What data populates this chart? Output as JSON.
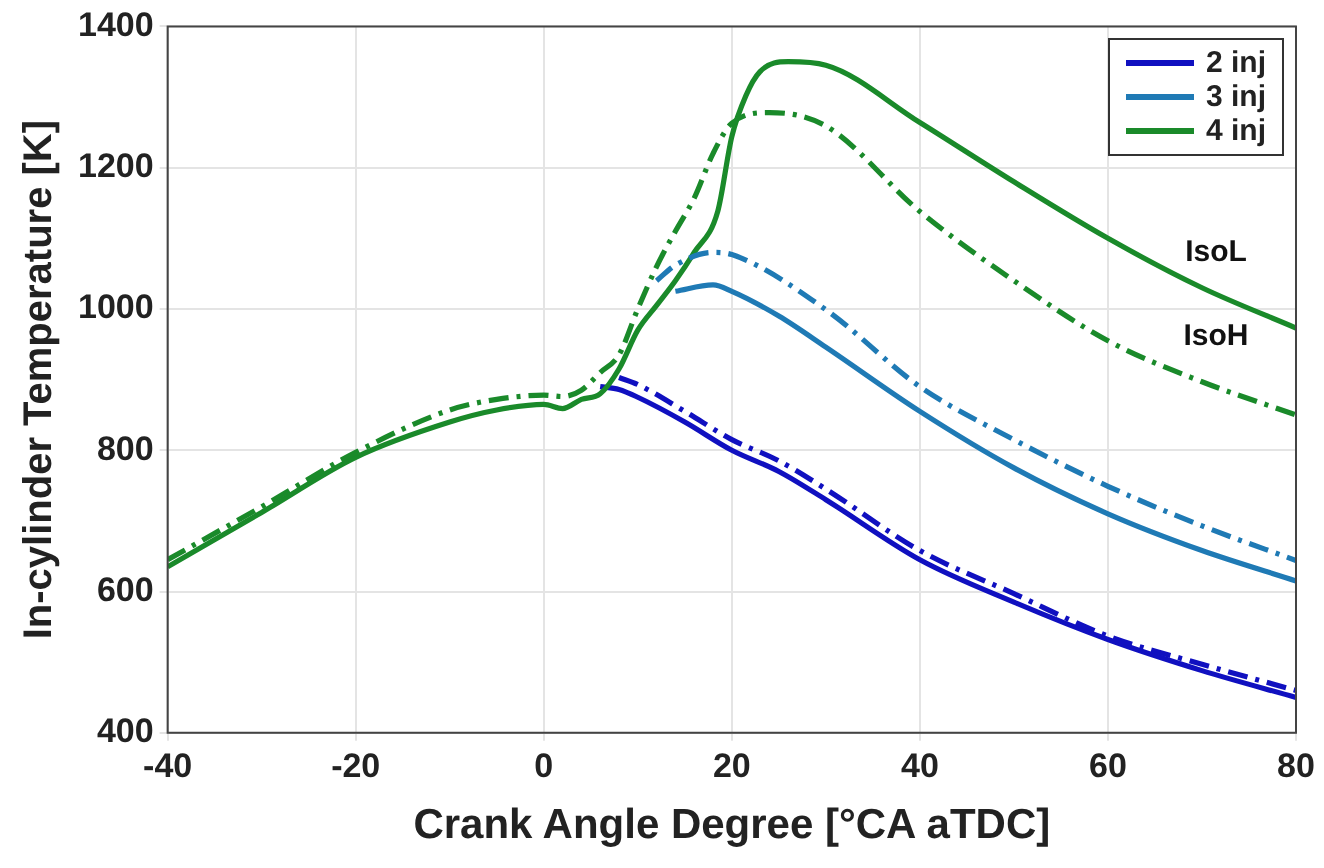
{
  "chart_data": {
    "type": "line",
    "xlabel": "Crank Angle Degree [°CA aTDC]",
    "ylabel": "In-cylinder Temperature [K]",
    "xlim": [
      -40,
      80
    ],
    "xticks": [
      -40,
      -20,
      0,
      20,
      40,
      60,
      80
    ],
    "ylim": [
      400,
      1400
    ],
    "yticks": [
      400,
      600,
      800,
      1000,
      1200,
      1400
    ],
    "grid": true,
    "legend": "top right",
    "marker": "none",
    "annotations": [
      "IsoL",
      "IsoH"
    ],
    "series": [
      {
        "name": "2 inj",
        "color": "#1010c0",
        "line_style": "solid",
        "x": [
          6,
          8,
          10,
          15,
          20,
          25,
          30,
          40,
          50,
          60,
          70,
          80
        ],
        "values": [
          890,
          886,
          875,
          840,
          800,
          770,
          730,
          645,
          585,
          532,
          488,
          450
        ]
      },
      {
        "name": "3 inj",
        "color": "#1f7ab5",
        "line_style": "solid",
        "x": [
          14,
          18,
          20,
          25,
          30,
          40,
          50,
          60,
          70,
          80
        ],
        "values": [
          1025,
          1034,
          1025,
          990,
          946,
          855,
          775,
          710,
          658,
          615
        ]
      },
      {
        "name": "4 inj",
        "color": "#1a8a2a",
        "line_style": "solid",
        "x": [
          -40,
          -30,
          -20,
          -10,
          -5,
          0,
          2,
          4,
          6,
          8,
          10,
          12,
          14,
          16,
          18.5,
          20,
          21.5,
          23,
          26,
          30,
          40,
          50,
          60,
          70,
          80
        ],
        "values": [
          635,
          712,
          790,
          840,
          857,
          865,
          859,
          872,
          880,
          915,
          970,
          1005,
          1040,
          1080,
          1138,
          1244,
          1302,
          1336,
          1350,
          1345,
          1264,
          1180,
          1100,
          1030,
          973
        ]
      },
      {
        "color": "#1010c0",
        "line_style": "dashed",
        "x": [
          8,
          10,
          15,
          20,
          25,
          30,
          40,
          50,
          60,
          70,
          80
        ],
        "values": [
          903,
          893,
          855,
          815,
          785,
          745,
          658,
          597,
          537,
          497,
          460
        ]
      },
      {
        "color": "#1f7ab5",
        "line_style": "dashed",
        "x": [
          12,
          14,
          18,
          20,
          30,
          40,
          50,
          60,
          70,
          80
        ],
        "values": [
          1040,
          1062,
          1080,
          1077,
          999,
          890,
          815,
          749,
          693,
          644
        ]
      },
      {
        "color": "#1a8a2a",
        "line_style": "dashed",
        "x": [
          -40,
          -30,
          -20,
          -10,
          -5,
          0,
          2,
          4,
          6,
          8,
          10,
          12,
          14,
          16,
          18,
          20,
          24,
          30,
          40,
          50,
          60,
          70,
          80
        ],
        "values": [
          645,
          720,
          797,
          857,
          872,
          878,
          876,
          885,
          910,
          935,
          1000,
          1060,
          1110,
          1157,
          1220,
          1263,
          1278,
          1259,
          1138,
          1040,
          955,
          897,
          850
        ]
      }
    ]
  }
}
